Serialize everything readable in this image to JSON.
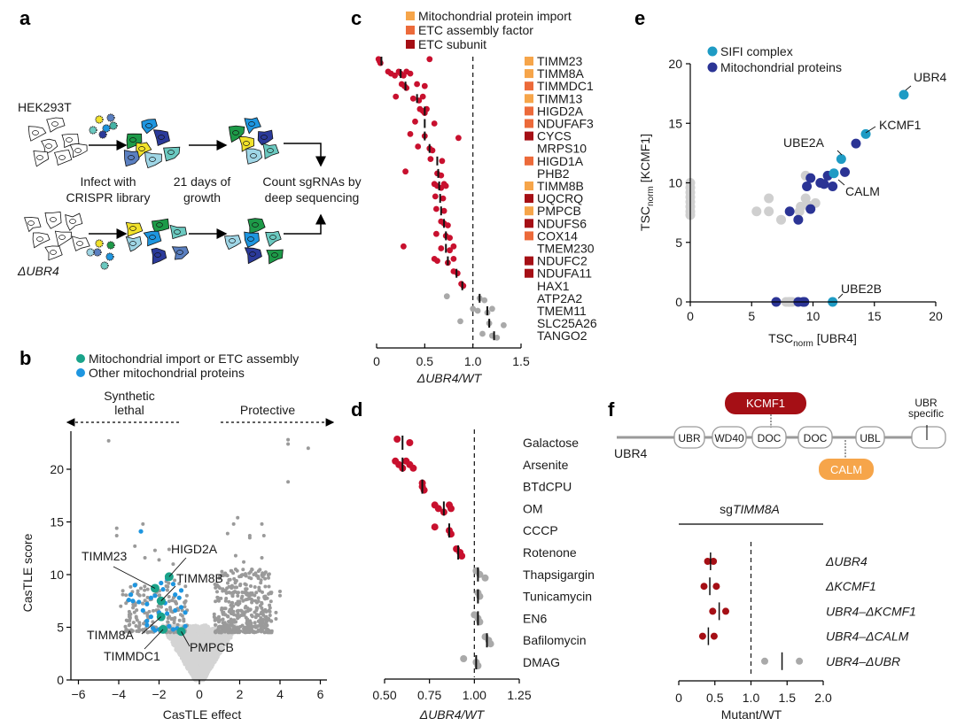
{
  "panels": {
    "a": {
      "letter": "a",
      "cell_line_top": "HEK293T",
      "cell_line_bottom": "ΔUBR4",
      "step1": [
        "Infect with",
        "CRISPR library"
      ],
      "step2": [
        "21 days of",
        "growth"
      ],
      "step3": [
        "Count sgRNAs by",
        "deep sequencing"
      ]
    },
    "b": {
      "letter": "b",
      "dir_left": [
        "Synthetic",
        "lethal"
      ],
      "dir_right": "Protective"
    },
    "c": {
      "letter": "c"
    },
    "d": {
      "letter": "d"
    },
    "e": {
      "letter": "e"
    },
    "f": {
      "letter": "f",
      "protein": "UBR4",
      "domains": [
        "UBR",
        "WD40",
        "DOC",
        "DOC",
        "UBL",
        ""
      ],
      "ubr_specific": [
        "UBR",
        "specific"
      ],
      "binder_top": "KCMF1",
      "binder_bottom": "CALM",
      "colors": {
        "kcmf1": "#a50f15",
        "calm": "#f6a54a"
      }
    }
  },
  "chart_data": [
    {
      "id": "b",
      "type": "scatter",
      "title": "",
      "xlabel": "CasTLE effect",
      "ylabel": "CasTLE score",
      "xlim": [
        -6.3,
        6.3
      ],
      "ylim": [
        0,
        23.5
      ],
      "xticks": [
        -6,
        -4,
        -2,
        0,
        2,
        4,
        6
      ],
      "xtick_labels": [
        "−6",
        "−4",
        "−2",
        "0",
        "2",
        "4",
        "6"
      ],
      "yticks": [
        0,
        5,
        10,
        15,
        20
      ],
      "legend": [
        {
          "label": "Mitochondrial import or ETC assembly",
          "color": "#1aa38a"
        },
        {
          "label": "Other mitochondrial proteins",
          "color": "#1e96e0"
        }
      ],
      "colors": {
        "background": "#d4d4d4",
        "significant": "#9a9a9a"
      },
      "highlighted": [
        {
          "label": "TIMM23",
          "x": -2.2,
          "y": 8.7
        },
        {
          "label": "HIGD2A",
          "x": -1.5,
          "y": 9.8
        },
        {
          "label": "TIMM8B",
          "x": -1.9,
          "y": 7.5
        },
        {
          "label": "TIMM8A",
          "x": -1.9,
          "y": 6.0
        },
        {
          "label": "TIMMDC1",
          "x": -1.8,
          "y": 4.8
        },
        {
          "label": "PMPCB",
          "x": -0.9,
          "y": 4.6
        }
      ],
      "other_mito": [
        [
          -2.9,
          14.1
        ],
        [
          -3.4,
          8.1
        ],
        [
          -3.5,
          7.6
        ],
        [
          -3.3,
          7.5
        ],
        [
          -3.0,
          7.4
        ],
        [
          -2.6,
          7.2
        ],
        [
          -2.4,
          7.8
        ],
        [
          -2.2,
          8.0
        ],
        [
          -1.9,
          9.2
        ],
        [
          -1.8,
          8.6
        ],
        [
          -1.6,
          9.6
        ],
        [
          -1.3,
          9.1
        ],
        [
          -1.2,
          8.1
        ],
        [
          -0.9,
          8.5
        ],
        [
          -1.0,
          7.8
        ],
        [
          -2.8,
          6.6
        ],
        [
          -2.4,
          6.0
        ],
        [
          -2.0,
          6.4
        ],
        [
          -1.6,
          6.3
        ],
        [
          -1.2,
          6.6
        ],
        [
          -0.9,
          6.9
        ],
        [
          -0.7,
          6.4
        ],
        [
          -2.6,
          5.2
        ],
        [
          -2.3,
          4.9
        ],
        [
          -2.0,
          4.8
        ],
        [
          -1.5,
          5.1
        ],
        [
          -1.3,
          4.8
        ],
        [
          -1.1,
          4.9
        ],
        [
          -0.7,
          5.1
        ],
        [
          -2.2,
          4.7
        ],
        [
          -3.2,
          9.0
        ],
        [
          -1.7,
          7.3
        ],
        [
          -2.6,
          5.6
        ]
      ],
      "outliers_grey": [
        [
          -4.5,
          22.7
        ],
        [
          -4.1,
          14.4
        ],
        [
          -4.1,
          13.7
        ],
        [
          -2.8,
          14.8
        ],
        [
          -3.2,
          12.7
        ],
        [
          -2.2,
          12.3
        ],
        [
          -1.5,
          12.4
        ],
        [
          -2.0,
          11.4
        ],
        [
          -1.3,
          11.0
        ],
        [
          -3.8,
          8.1
        ],
        [
          -3.9,
          7.0
        ],
        [
          -2.9,
          8.7
        ],
        [
          -2.7,
          11.6
        ],
        [
          4.4,
          22.8
        ],
        [
          4.4,
          22.4
        ],
        [
          5.4,
          22.0
        ],
        [
          4.4,
          18.8
        ],
        [
          1.9,
          15.4
        ],
        [
          1.7,
          14.8
        ],
        [
          3.1,
          14.8
        ],
        [
          1.4,
          13.9
        ],
        [
          3.2,
          13.7
        ],
        [
          2.5,
          13.7
        ],
        [
          2.5,
          13.5
        ],
        [
          3.1,
          11.6
        ],
        [
          1.8,
          11.8
        ],
        [
          2.2,
          11.2
        ],
        [
          1.8,
          10.5
        ],
        [
          2.6,
          10.5
        ],
        [
          2.7,
          10.0
        ],
        [
          4.0,
          8.4
        ],
        [
          4.0,
          8.0
        ],
        [
          3.8,
          6.4
        ],
        [
          3.8,
          5.8
        ]
      ],
      "right_cloud": {
        "x_from": 0.7,
        "x_to": 3.6,
        "y_from": 4.5,
        "y_to": 10.5,
        "count": 420
      },
      "left_cloud": {
        "x_from": -3.8,
        "x_to": -0.6,
        "y_from": 4.5,
        "y_to": 9.5,
        "count": 180
      },
      "v_cloud_count": 2500
    },
    {
      "id": "c",
      "type": "scatter",
      "xlabel": "ΔUBR4/WT",
      "xlim": [
        0,
        1.5
      ],
      "xticks": [
        0,
        0.5,
        1.0,
        1.5
      ],
      "xtick_labels": [
        "0",
        "0.5",
        "1.0",
        "1.5"
      ],
      "reference_line": 1.0,
      "legend": [
        {
          "label": "Mitochondrial protein import",
          "color": "#f6a54a"
        },
        {
          "label": "ETC assembly factor",
          "color": "#ec6a3a"
        },
        {
          "label": "ETC subunit",
          "color": "#a50f15"
        }
      ],
      "point_colors": {
        "hit": "#c8102e",
        "nonhit": "#a9a9a9"
      },
      "rows": [
        {
          "gene": "TIMM23",
          "category": "import",
          "hit": true,
          "median": 0.05,
          "points": [
            0.02,
            0.03,
            0.04,
            0.55
          ]
        },
        {
          "gene": "TIMM8A",
          "category": "import",
          "hit": true,
          "median": 0.25,
          "points": [
            0.12,
            0.15,
            0.19,
            0.23,
            0.25,
            0.28,
            0.31,
            0.35
          ]
        },
        {
          "gene": "TIMMDC1",
          "category": "assembly",
          "hit": true,
          "median": 0.3,
          "points": [
            0.26,
            0.29,
            0.31,
            0.42,
            0.5
          ]
        },
        {
          "gene": "TIMM13",
          "category": "import",
          "hit": true,
          "median": 0.42,
          "points": [
            0.2,
            0.38,
            0.44,
            0.48
          ]
        },
        {
          "gene": "HIGD2A",
          "category": "assembly",
          "hit": true,
          "median": 0.5,
          "points": [
            0.45,
            0.48,
            0.5,
            0.52
          ]
        },
        {
          "gene": "NDUFAF3",
          "category": "assembly",
          "hit": true,
          "median": 0.5,
          "points": [
            0.4,
            0.6
          ]
        },
        {
          "gene": "CYCS",
          "category": "subunit",
          "hit": true,
          "median": 0.5,
          "points": [
            0.35,
            0.5,
            0.85
          ]
        },
        {
          "gene": "MRPS10",
          "category": "none",
          "hit": true,
          "median": 0.55,
          "points": [
            0.43,
            0.55,
            0.58
          ]
        },
        {
          "gene": "HIGD1A",
          "category": "assembly",
          "hit": true,
          "median": 0.63,
          "points": [
            0.56,
            0.68
          ]
        },
        {
          "gene": "PHB2",
          "category": "none",
          "hit": true,
          "median": 0.64,
          "points": [
            0.3,
            0.63,
            0.67
          ]
        },
        {
          "gene": "TIMM8B",
          "category": "import",
          "hit": true,
          "median": 0.65,
          "points": [
            0.6,
            0.63,
            0.67,
            0.7,
            0.72
          ]
        },
        {
          "gene": "UQCRQ",
          "category": "subunit",
          "hit": true,
          "median": 0.66,
          "points": [
            0.61,
            0.69
          ]
        },
        {
          "gene": "PMPCB",
          "category": "import",
          "hit": true,
          "median": 0.67,
          "points": [
            0.62,
            0.7
          ]
        },
        {
          "gene": "NDUFS6",
          "category": "subunit",
          "hit": true,
          "median": 0.7,
          "points": [
            0.67,
            0.7,
            0.74
          ]
        },
        {
          "gene": "COX14",
          "category": "assembly",
          "hit": true,
          "median": 0.72,
          "points": [
            0.62,
            0.72,
            0.76
          ]
        },
        {
          "gene": "TMEM230",
          "category": "none",
          "hit": true,
          "median": 0.72,
          "points": [
            0.28,
            0.67,
            0.76,
            0.8
          ]
        },
        {
          "gene": "NDUFC2",
          "category": "subunit",
          "hit": true,
          "median": 0.74,
          "points": [
            0.6,
            0.63,
            0.74,
            0.8
          ]
        },
        {
          "gene": "NDUFA11",
          "category": "subunit",
          "hit": true,
          "median": 0.83,
          "points": [
            0.8,
            0.84
          ]
        },
        {
          "gene": "HAX1",
          "category": "none",
          "hit": true,
          "median": 0.89,
          "points": [
            0.88,
            0.9
          ]
        },
        {
          "gene": "ATP2A2",
          "category": "none",
          "hit": false,
          "median": 1.07,
          "points": [
            0.73,
            1.07,
            1.12
          ]
        },
        {
          "gene": "TMEM11",
          "category": "none",
          "hit": false,
          "median": 1.15,
          "points": [
            1.0,
            1.05,
            1.15,
            1.2
          ]
        },
        {
          "gene": "SLC25A26",
          "category": "none",
          "hit": false,
          "median": 1.17,
          "points": [
            0.87,
            1.17,
            1.32
          ]
        },
        {
          "gene": "TANGO2",
          "category": "none",
          "hit": false,
          "median": 1.22,
          "points": [
            1.1,
            1.2,
            1.25
          ]
        }
      ]
    },
    {
      "id": "d",
      "type": "scatter",
      "xlabel": "ΔUBR4/WT",
      "xlim": [
        0.5,
        1.25
      ],
      "xticks": [
        0.5,
        0.75,
        1.0,
        1.25
      ],
      "xtick_labels": [
        "0.50",
        "0.75",
        "1.00",
        "1.25"
      ],
      "reference_line": 1.0,
      "point_colors": {
        "hit": "#c8102e",
        "nonhit": "#a9a9a9"
      },
      "rows": [
        {
          "condition": "Galactose",
          "hit": true,
          "median": 0.6,
          "points": [
            0.57,
            0.64
          ]
        },
        {
          "condition": "Arsenite",
          "hit": true,
          "median": 0.6,
          "points": [
            0.56,
            0.58,
            0.6,
            0.62,
            0.64,
            0.66
          ]
        },
        {
          "condition": "BTdCPU",
          "hit": true,
          "median": 0.71,
          "points": [
            0.71,
            0.71,
            0.72
          ]
        },
        {
          "condition": "OM",
          "hit": true,
          "median": 0.83,
          "points": [
            0.78,
            0.8,
            0.83,
            0.86,
            0.87
          ]
        },
        {
          "condition": "CCCP",
          "hit": true,
          "median": 0.86,
          "points": [
            0.78,
            0.86,
            0.87
          ]
        },
        {
          "condition": "Rotenone",
          "hit": true,
          "median": 0.91,
          "points": [
            0.9,
            0.92,
            0.93
          ]
        },
        {
          "condition": "Thapsigargin",
          "hit": false,
          "median": 1.02,
          "points": [
            1.01,
            1.03,
            1.06
          ]
        },
        {
          "condition": "Tunicamycin",
          "hit": false,
          "median": 1.02,
          "points": [
            1.02,
            1.03
          ]
        },
        {
          "condition": "EN6",
          "hit": false,
          "median": 1.02,
          "points": [
            1.0,
            1.02,
            1.03
          ]
        },
        {
          "condition": "Bafilomycin",
          "hit": false,
          "median": 1.07,
          "points": [
            1.06,
            1.08,
            1.09
          ]
        },
        {
          "condition": "DMAG",
          "hit": false,
          "median": 1.01,
          "points": [
            0.94,
            1.01,
            1.02
          ]
        }
      ]
    },
    {
      "id": "e",
      "type": "scatter",
      "xlabel_main": "TSC",
      "xlabel_sub": "norm",
      "xlabel_suffix": " [UBR4]",
      "ylabel_main": "TSC",
      "ylabel_sub": "norm",
      "ylabel_suffix": " [KCMF1]",
      "xlim": [
        0,
        20
      ],
      "ylim": [
        0,
        20
      ],
      "xticks": [
        0,
        5,
        10,
        15,
        20
      ],
      "yticks": [
        0,
        5,
        10,
        15,
        20
      ],
      "legend": [
        {
          "label": "SIFI complex",
          "color": "#1e9bc4"
        },
        {
          "label": "Mitochondrial proteins",
          "color": "#2b3495"
        }
      ],
      "grey_color": "#cfcfcf",
      "sifi": [
        {
          "label": "UBR4",
          "x": 17.4,
          "y": 17.4
        },
        {
          "label": "KCMF1",
          "x": 14.3,
          "y": 14.1
        },
        {
          "label": "UBE2A",
          "x": 12.3,
          "y": 12.0
        },
        {
          "label": "CALM",
          "x": 11.7,
          "y": 10.8
        },
        {
          "label": "UBE2B",
          "x": 11.6,
          "y": 0
        }
      ],
      "mito": [
        [
          13.5,
          13.3
        ],
        [
          12.6,
          10.9
        ],
        [
          11.2,
          10.6
        ],
        [
          9.8,
          10.4
        ],
        [
          9.5,
          9.7
        ],
        [
          10.6,
          10.0
        ],
        [
          10.9,
          9.9
        ],
        [
          11.6,
          9.7
        ],
        [
          8.1,
          7.6
        ],
        [
          8.8,
          6.9
        ],
        [
          9.8,
          7.8
        ],
        [
          7.0,
          0
        ],
        [
          8.8,
          0
        ],
        [
          9.2,
          0
        ],
        [
          9.3,
          0
        ]
      ],
      "grey": [
        [
          0,
          10.0
        ],
        [
          0,
          9.6
        ],
        [
          0,
          9.2
        ],
        [
          0,
          8.8
        ],
        [
          0,
          8.4
        ],
        [
          0,
          8.0
        ],
        [
          0,
          7.6
        ],
        [
          0,
          7.3
        ],
        [
          5.4,
          7.6
        ],
        [
          6.4,
          8.7
        ],
        [
          6.4,
          7.6
        ],
        [
          7.4,
          6.9
        ],
        [
          8.9,
          7.6
        ],
        [
          9.4,
          8.7
        ],
        [
          9.4,
          10.6
        ],
        [
          9.6,
          8.1
        ],
        [
          10.2,
          8.3
        ],
        [
          9.0,
          8.0
        ],
        [
          7.8,
          0
        ],
        [
          8.1,
          0
        ],
        [
          8.3,
          0
        ],
        [
          8.0,
          0
        ]
      ]
    },
    {
      "id": "f",
      "type": "scatter",
      "title_prefix": "sg",
      "title_gene": "TIMM8A",
      "xlabel": "Mutant/WT",
      "xlim": [
        0,
        2.0
      ],
      "xticks": [
        0,
        0.5,
        1.0,
        1.5,
        2.0
      ],
      "xtick_labels": [
        "0",
        "0.5",
        "1.0",
        "1.5",
        "2.0"
      ],
      "reference_line": 1.0,
      "point_colors": {
        "hit": "#a50f15",
        "nonhit": "#a9a9a9"
      },
      "rows": [
        {
          "label": "ΔUBR4",
          "hit": true,
          "median": 0.44,
          "points": [
            0.4,
            0.48
          ]
        },
        {
          "label": "ΔKCMF1",
          "hit": true,
          "median": 0.43,
          "points": [
            0.35,
            0.52
          ]
        },
        {
          "label": "UBR4–ΔKCMF1",
          "hit": true,
          "median": 0.56,
          "points": [
            0.47,
            0.65
          ]
        },
        {
          "label": "UBR4–ΔCALM",
          "hit": true,
          "median": 0.41,
          "points": [
            0.33,
            0.49
          ]
        },
        {
          "label": "UBR4–ΔUBR",
          "hit": false,
          "median": 1.43,
          "points": [
            1.19,
            1.67
          ]
        }
      ]
    }
  ]
}
